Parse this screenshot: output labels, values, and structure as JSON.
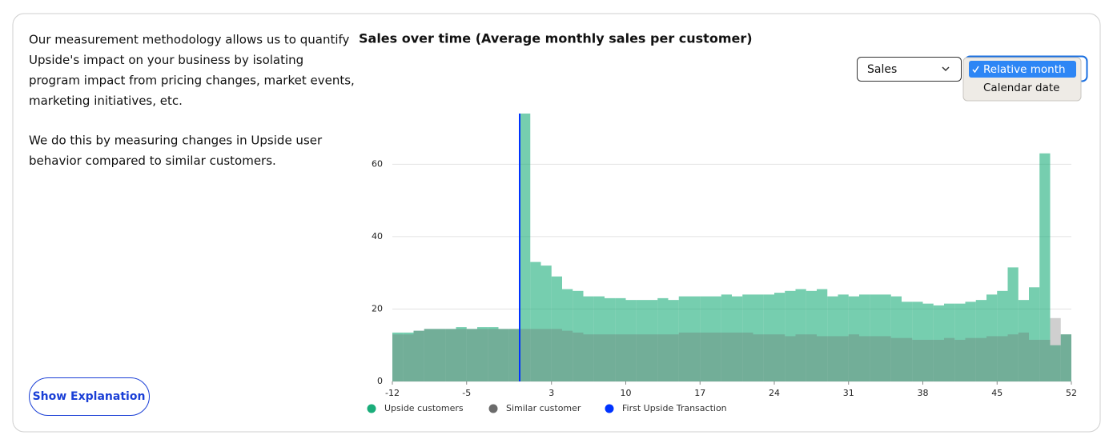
{
  "intro": {
    "paragraphs": [
      [
        "Our measurement methodology allows us to quantify",
        "Upside's impact on your business by isolating",
        "program impact from pricing changes, market events,",
        "marketing initiatives, etc."
      ],
      [
        "We do this by measuring changes in Upside user",
        "behavior compared to similar customers."
      ]
    ],
    "button": "Show Explanation"
  },
  "controls": {
    "metric": "Sales",
    "options": [
      "Relative month",
      "Calendar date"
    ]
  },
  "chart_data": {
    "type": "bar",
    "title": "Sales over time  (Average monthly sales per customer)",
    "x": [
      -12,
      -11,
      -10,
      -9,
      -8,
      -7,
      -6,
      -5,
      -4,
      -3,
      -2,
      -1,
      0,
      1,
      2,
      3,
      4,
      5,
      6,
      7,
      8,
      9,
      10,
      11,
      12,
      13,
      14,
      15,
      16,
      17,
      18,
      19,
      20,
      21,
      22,
      23,
      24,
      25,
      26,
      27,
      28,
      29,
      30,
      31,
      32,
      33,
      34,
      35,
      36,
      37,
      38,
      39,
      40,
      41,
      42,
      43,
      44,
      45,
      46,
      47,
      48,
      49,
      50,
      51
    ],
    "series": [
      {
        "name": "Upside customers",
        "color": "#1aad7a",
        "values": [
          13.5,
          13.5,
          14,
          14.5,
          14.5,
          14.5,
          15,
          14.5,
          15,
          15,
          14.5,
          14.5,
          74,
          33,
          32,
          29,
          25.5,
          25,
          23.5,
          23.5,
          23,
          23,
          22.5,
          22.5,
          22.5,
          23,
          22.5,
          23.5,
          23.5,
          23.5,
          23.5,
          24,
          23.5,
          24,
          24,
          24,
          24.5,
          25,
          25.5,
          25,
          25.5,
          23.5,
          24,
          23.5,
          24,
          24,
          24,
          23.5,
          22,
          22,
          21.5,
          21,
          21.5,
          21.5,
          22,
          22.5,
          24,
          25,
          31.5,
          22.5,
          26,
          63,
          10,
          13
        ]
      },
      {
        "name": "Similar customer",
        "color": "#6b6b6b",
        "values": [
          13,
          13,
          14,
          14.5,
          14.5,
          14.5,
          14.5,
          14.5,
          14.5,
          14.5,
          14.5,
          14.5,
          14.5,
          14.5,
          14.5,
          14.5,
          14,
          13.5,
          13,
          13,
          13,
          13,
          13,
          13,
          13,
          13,
          13,
          13.5,
          13.5,
          13.5,
          13.5,
          13.5,
          13.5,
          13.5,
          13,
          13,
          13,
          12.5,
          13,
          13,
          12.5,
          12.5,
          12.5,
          13,
          12.5,
          12.5,
          12.5,
          12,
          12,
          11.5,
          11.5,
          11.5,
          12,
          11.5,
          12,
          12,
          12.5,
          12.5,
          13,
          13.5,
          11.5,
          11.5,
          17.5,
          13
        ]
      }
    ],
    "marker": {
      "name": "First Upside Transaction",
      "color": "#0033ff",
      "x": 0
    },
    "xlim": [
      -12,
      52
    ],
    "xticks": [
      -12,
      -5,
      3,
      10,
      17,
      24,
      31,
      38,
      45,
      52
    ],
    "ylim": [
      0,
      74
    ],
    "yticks": [
      0,
      20,
      40,
      60
    ],
    "grid": true
  }
}
